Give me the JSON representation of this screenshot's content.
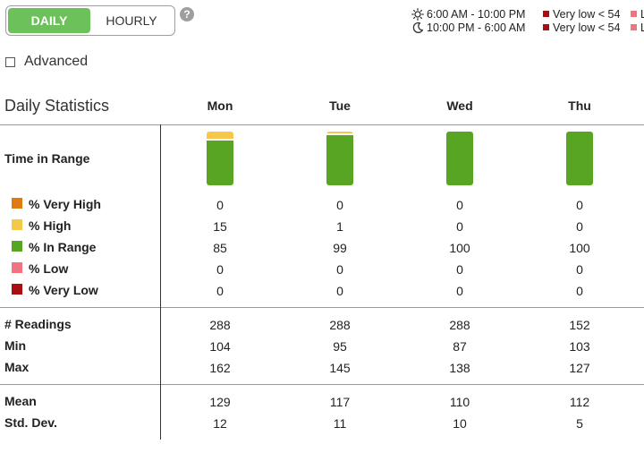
{
  "toggle": {
    "daily": "DAILY",
    "hourly": "HOURLY",
    "help": "?"
  },
  "legend": {
    "day_time": "6:00 AM - 10:00 PM",
    "night_time": "10:00 PM - 6:00 AM",
    "very_low_day": "Very low < 54",
    "very_low_night": "Very low < 54",
    "low_day": "Lo",
    "low_night": "Lo"
  },
  "advanced": "Advanced",
  "stats": {
    "title": "Daily Statistics",
    "days": [
      "Mon",
      "Tue",
      "Wed",
      "Thu"
    ],
    "row_labels": {
      "time_in_range": "Time in Range",
      "very_high": "% Very High",
      "high": "% High",
      "in_range": "% In Range",
      "low": "% Low",
      "very_low": "% Very Low",
      "readings": "# Readings",
      "min": "Min",
      "max": "Max",
      "mean": "Mean",
      "std_dev": "Std. Dev."
    },
    "values": {
      "very_high": [
        "0",
        "0",
        "0",
        "0"
      ],
      "high": [
        "15",
        "1",
        "0",
        "0"
      ],
      "in_range": [
        "85",
        "99",
        "100",
        "100"
      ],
      "low": [
        "0",
        "0",
        "0",
        "0"
      ],
      "very_low": [
        "0",
        "0",
        "0",
        "0"
      ],
      "readings": [
        "288",
        "288",
        "288",
        "152"
      ],
      "min": [
        "104",
        "95",
        "87",
        "103"
      ],
      "max": [
        "162",
        "145",
        "138",
        "127"
      ],
      "mean": [
        "129",
        "117",
        "110",
        "112"
      ],
      "std_dev": [
        "12",
        "11",
        "10",
        "5"
      ]
    }
  },
  "colors": {
    "very_high": "#e07a12",
    "high": "#f5c84a",
    "in_range": "#58a423",
    "low": "#f27380",
    "very_low": "#a80e12",
    "accent": "#6cc15a"
  }
}
